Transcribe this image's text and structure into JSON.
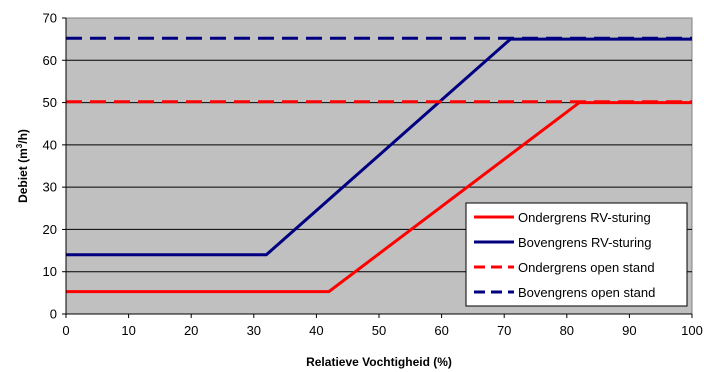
{
  "chart_data": {
    "type": "line",
    "title": "",
    "xlabel": "Relatieve Vochtigheid (%)",
    "ylabel_parts": {
      "before": "Debiet (m",
      "sup": "3",
      "after": "/h)"
    },
    "xlim": [
      0,
      100
    ],
    "ylim": [
      0,
      70
    ],
    "x_ticks": [
      0,
      10,
      20,
      30,
      40,
      50,
      60,
      70,
      80,
      90,
      100
    ],
    "y_ticks": [
      0,
      10,
      20,
      30,
      40,
      50,
      60,
      70
    ],
    "grid": "horizontal",
    "plot_background": "#c0c0c0",
    "legend_position": "bottom-right",
    "series": [
      {
        "name": "Ondergrens RV-sturing",
        "color": "#ff0000",
        "dash": "solid",
        "points": [
          [
            0,
            5.3
          ],
          [
            42,
            5.3
          ],
          [
            82,
            50
          ],
          [
            100,
            50
          ]
        ]
      },
      {
        "name": "Bovengrens RV-sturing",
        "color": "#000080",
        "dash": "solid",
        "points": [
          [
            0,
            14
          ],
          [
            32,
            14
          ],
          [
            71,
            65
          ],
          [
            100,
            65
          ]
        ]
      },
      {
        "name": "Ondergrens open stand",
        "color": "#ff0000",
        "dash": "dashed",
        "points": [
          [
            0,
            50.2
          ],
          [
            100,
            50.2
          ]
        ]
      },
      {
        "name": "Bovengrens open stand",
        "color": "#000080",
        "dash": "dashed",
        "points": [
          [
            0,
            65.2
          ],
          [
            100,
            65.2
          ]
        ]
      }
    ]
  }
}
